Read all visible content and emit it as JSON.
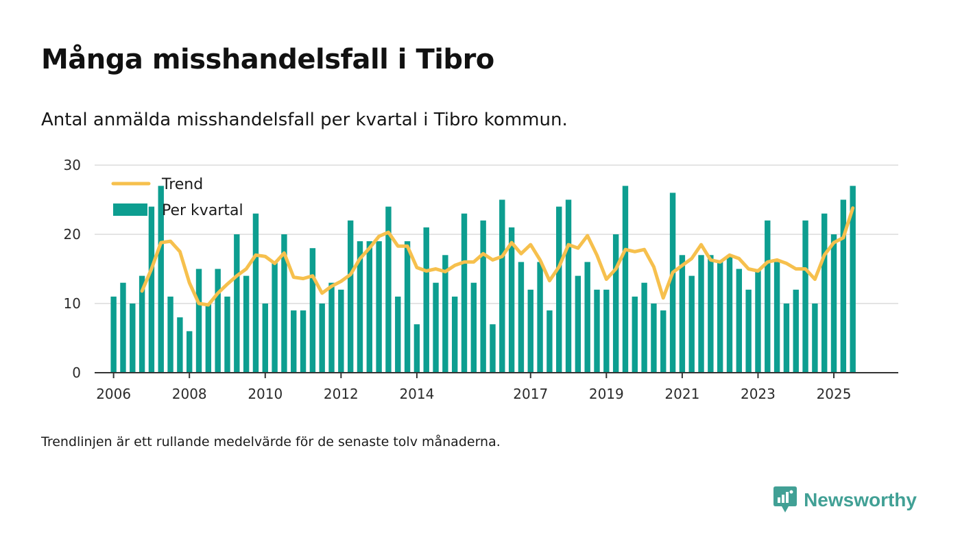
{
  "title": "Många misshandelsfall i Tibro",
  "subtitle": "Antal anmälda misshandelsfall per kvartal i Tibro kommun.",
  "footnote": "Trendlinjen är ett rullande medelvärde för de senaste tolv månaderna.",
  "brand": {
    "name": "Newsworthy",
    "icon": "newsworthy-logo-icon"
  },
  "colors": {
    "bars": "#0d9e90",
    "trend": "#f6c04d",
    "grid": "#dcdcdc",
    "axis": "#333333",
    "brand": "#41a095"
  },
  "chart_data": {
    "type": "bar",
    "ylim": [
      0,
      30
    ],
    "yticks": [
      0,
      10,
      20,
      30
    ],
    "grid": true,
    "legend_position": "top-left",
    "x_range": [
      2005.5,
      2026.7
    ],
    "xticks": [
      {
        "value": 2006.0,
        "label": "2006"
      },
      {
        "value": 2008.0,
        "label": "2008"
      },
      {
        "value": 2010.0,
        "label": "2010"
      },
      {
        "value": 2012.0,
        "label": "2012"
      },
      {
        "value": 2014.0,
        "label": "2014"
      },
      {
        "value": 2017.0,
        "label": "2017"
      },
      {
        "value": 2019.0,
        "label": "2019"
      },
      {
        "value": 2021.0,
        "label": "2021"
      },
      {
        "value": 2023.0,
        "label": "2023"
      },
      {
        "value": 2025.0,
        "label": "2025"
      }
    ],
    "x_start": 2006.0,
    "x_step": 0.25,
    "series": [
      {
        "name": "Per kvartal",
        "type": "bar",
        "values": [
          11,
          13,
          10,
          14,
          24,
          27,
          11,
          8,
          6,
          15,
          10,
          15,
          11,
          20,
          14,
          23,
          10,
          16,
          20,
          9,
          9,
          18,
          10,
          13,
          12,
          22,
          19,
          19,
          19,
          24,
          11,
          19,
          7,
          21,
          13,
          17,
          11,
          23,
          13,
          22,
          7,
          25,
          21,
          16,
          12,
          16,
          9,
          24,
          25,
          14,
          16,
          12,
          12,
          20,
          27,
          11,
          13,
          10,
          9,
          26,
          17,
          14,
          17,
          17,
          16,
          17,
          15,
          12,
          15,
          22,
          16,
          10,
          12,
          22,
          10,
          23,
          20,
          25,
          27
        ]
      },
      {
        "name": "Trend",
        "type": "line",
        "start_index": 3,
        "values": [
          11.8,
          15.0,
          18.8,
          19.0,
          17.5,
          13.0,
          10.0,
          9.8,
          11.5,
          12.8,
          14.0,
          15.0,
          17.0,
          16.8,
          15.8,
          17.3,
          13.8,
          13.6,
          14.0,
          11.5,
          12.5,
          13.2,
          14.2,
          16.5,
          18.0,
          19.7,
          20.3,
          18.3,
          18.3,
          15.2,
          14.7,
          15.0,
          14.6,
          15.5,
          16.0,
          16.0,
          17.2,
          16.3,
          16.8,
          18.8,
          17.2,
          18.5,
          16.3,
          13.3,
          15.3,
          18.5,
          18.0,
          19.8,
          17.0,
          13.5,
          15.0,
          17.8,
          17.5,
          17.8,
          15.3,
          10.8,
          14.5,
          15.5,
          16.5,
          18.5,
          16.3,
          16.0,
          17.0,
          16.5,
          15.0,
          14.7,
          16.0,
          16.3,
          15.8,
          15.0,
          15.0,
          13.5,
          17.0,
          18.8,
          19.5,
          23.8
        ]
      }
    ],
    "legend": [
      {
        "name": "Trend",
        "kind": "line"
      },
      {
        "name": "Per kvartal",
        "kind": "bar"
      }
    ]
  }
}
